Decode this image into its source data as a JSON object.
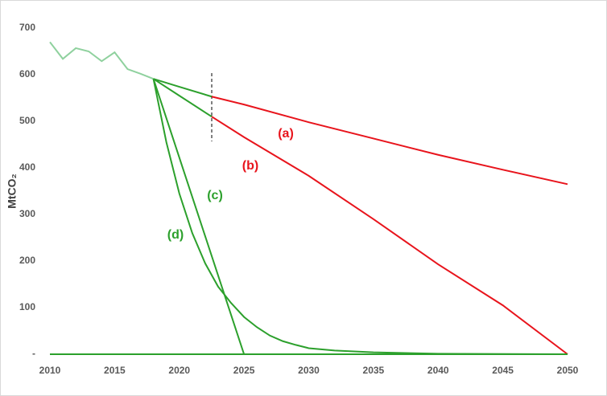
{
  "chart_data": {
    "type": "line",
    "ylabel": "MtCO₂",
    "xlim": [
      2010,
      2050
    ],
    "xticks": [
      2010,
      2015,
      2020,
      2025,
      2030,
      2035,
      2040,
      2045,
      2050
    ],
    "ylim": [
      0,
      700
    ],
    "yticks": [
      {
        "value": 0,
        "label": "-"
      },
      100,
      200,
      300,
      400,
      500,
      600,
      700
    ],
    "series": [
      {
        "color": "#8fd19e",
        "x": [
          2010,
          2011,
          2012,
          2013,
          2014,
          2015,
          2016,
          2017,
          2018
        ],
        "values": [
          670,
          634,
          657,
          650,
          629,
          648,
          612,
          602,
          591
        ]
      },
      {
        "color": "#2ca02c",
        "x": [
          2018,
          2020,
          2022.5
        ],
        "values": [
          591,
          574,
          553
        ]
      },
      {
        "name": "(a)",
        "color": "#e8141c",
        "x": [
          2022.5,
          2025,
          2030,
          2035,
          2040,
          2045,
          2050
        ],
        "values": [
          553,
          536,
          498,
          463,
          428,
          396,
          365
        ]
      },
      {
        "color": "#2ca02c",
        "x": [
          2018,
          2020,
          2022.5
        ],
        "values": [
          591,
          555,
          510
        ]
      },
      {
        "name": "(b)",
        "color": "#e8141c",
        "x": [
          2022.5,
          2025,
          2030,
          2035,
          2040,
          2045,
          2050
        ],
        "values": [
          510,
          466,
          383,
          290,
          193,
          105,
          0
        ]
      },
      {
        "name": "(c)",
        "color": "#2ca02c",
        "x": [
          2018,
          2025,
          2050
        ],
        "values": [
          591,
          0,
          0
        ]
      },
      {
        "name": "(d)",
        "color": "#2ca02c",
        "x": [
          2018,
          2019,
          2020,
          2021,
          2022,
          2023,
          2024,
          2025,
          2026,
          2027,
          2028,
          2029,
          2030,
          2032,
          2035,
          2040,
          2050
        ],
        "values": [
          591,
          455,
          345,
          260,
          195,
          145,
          110,
          80,
          58,
          40,
          28,
          20,
          13,
          8,
          4,
          1,
          0
        ]
      }
    ]
  }
}
